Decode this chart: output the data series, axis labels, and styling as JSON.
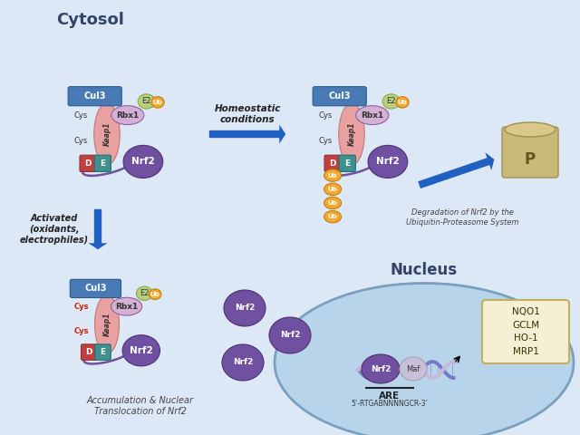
{
  "bg_outer": "#dce8f5",
  "bg_nucleus_ellipse": "#b8d4ea",
  "cytosol_label": "Cytosol",
  "nucleus_label": "Nucleus",
  "cul3_color": "#4a7ab5",
  "keap1_color": "#e8a0a0",
  "rbx1_color": "#d4b0d4",
  "e2_color": "#b8d080",
  "ub_color": "#f5a830",
  "d_color": "#c04040",
  "e_color": "#409090",
  "nrf2_color": "#7050a0",
  "maf_color": "#c8c0d8",
  "p_color": "#c8b87a",
  "p_top_color": "#d8c88a",
  "arrow_color": "#2060c0",
  "homeostatic_text": "Homeostatic\nconditions",
  "activated_text": "Activated\n(oxidants,\nelectrophiles)",
  "accumulation_text": "Accumulation & Nuclear\nTranslocation of Nrf2",
  "degradation_text": "Degradation of Nrf2 by the\nUbiquitin-Proteasome System",
  "are_label": "ARE",
  "are_seq": "5’-RTGABNNNNGCR-3’",
  "genes_text": "NQO1\nGCLM\nHO-1\nMRP1",
  "dna_color1": "#7878c8",
  "dna_color2": "#c8b8d8",
  "keap1_label": "Keap1",
  "cul3_label": "Cul3",
  "rbx1_label": "Rbx1",
  "e2_label": "E2",
  "ub_label": "Ub",
  "d_label": "D",
  "e_label": "E",
  "nrf2_label": "Nrf2",
  "maf_label": "Maf",
  "p_label": "P"
}
